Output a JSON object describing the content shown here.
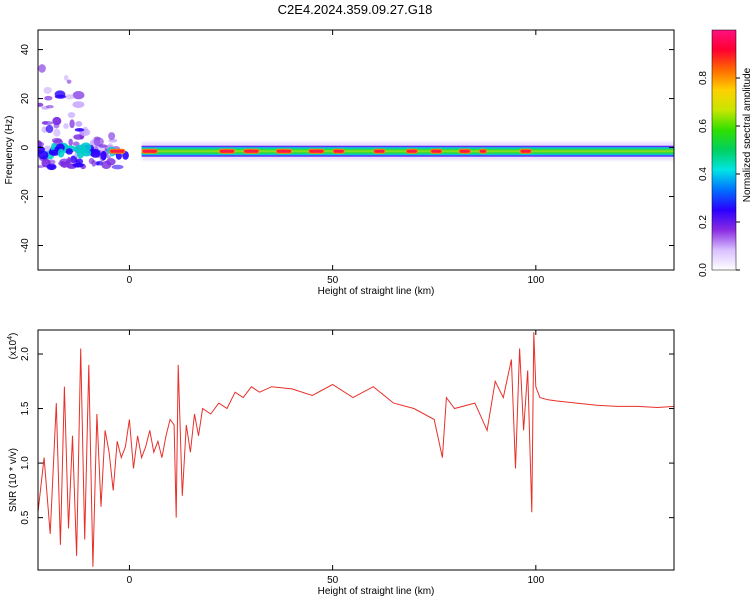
{
  "title": "C2E4.2024.359.09.27.G18",
  "colors": {
    "snr_line": "#e8302a",
    "frame": "#000000"
  },
  "chart_data": [
    {
      "type": "heatmap",
      "title": "C2E4.2024.359.09.27.G18",
      "xlabel": "Height of straight line (km)",
      "ylabel": "Frequency (Hz)",
      "xlim": [
        -22.5,
        134
      ],
      "ylim": [
        -50,
        48
      ],
      "x_ticks": [
        0,
        50,
        100
      ],
      "y_ticks": [
        40,
        20,
        0,
        -20,
        -40
      ],
      "x_tick_labels": [
        "0",
        "50",
        "100"
      ],
      "y_tick_labels": [
        "40",
        "20",
        "0",
        "-20",
        "-40"
      ],
      "colorbar": {
        "label": "Normalized spectral amplitude",
        "range": [
          0,
          1
        ],
        "ticks": [
          0.0,
          0.2,
          0.4,
          0.6,
          0.8
        ],
        "tick_labels": [
          "0.0",
          "0.2",
          "0.4",
          "0.6",
          "0.8"
        ],
        "colors": [
          "#ffffff",
          "#d8c0ff",
          "#8a2be2",
          "#2a00ff",
          "#0070ff",
          "#00e5e5",
          "#00d060",
          "#30e000",
          "#c8e600",
          "#ffd000",
          "#ff6a00",
          "#ff0030",
          "#ff1080"
        ]
      },
      "band": {
        "center_freq": -1.5,
        "peak_segments": [
          [
            -5,
            -1
          ],
          [
            3,
            7
          ],
          [
            22,
            26
          ],
          [
            28,
            32
          ],
          [
            36,
            40
          ],
          [
            44,
            48
          ],
          [
            50,
            53
          ],
          [
            60,
            63
          ],
          [
            68,
            71
          ],
          [
            74,
            77
          ],
          [
            81,
            84
          ],
          [
            86,
            88
          ],
          [
            96,
            99
          ]
        ]
      }
    },
    {
      "type": "line",
      "xlabel": "Height of straight line (km)",
      "ylabel": "SNR (10 * v/v)",
      "y_multiplier": "(x10",
      "y_multiplier_exp": "4",
      "y_multiplier_close": ")",
      "xlim": [
        -22.5,
        134
      ],
      "ylim": [
        0.02,
        2.22
      ],
      "x_ticks": [
        0,
        50,
        100
      ],
      "y_ticks": [
        0.5,
        1.0,
        1.5,
        2.0
      ],
      "x_tick_labels": [
        "0",
        "50",
        "100"
      ],
      "y_tick_labels": [
        "0.5",
        "1.0",
        "1.5",
        "2.0"
      ],
      "series": [
        {
          "x": [
            -22.5,
            -21,
            -19.5,
            -18,
            -17,
            -16,
            -15,
            -14,
            -13,
            -12,
            -11,
            -10,
            -9,
            -8,
            -7,
            -6,
            -5,
            -4,
            -3,
            -2,
            -1,
            0,
            1,
            2,
            3,
            4,
            5,
            6,
            7,
            8,
            9,
            10,
            11,
            11.5,
            12,
            13,
            14,
            15,
            16,
            17,
            18,
            20,
            22,
            24,
            26,
            28,
            30,
            32,
            35,
            40,
            45,
            50,
            55,
            60,
            65,
            70,
            75,
            77,
            78,
            80,
            85,
            88,
            90,
            92,
            94,
            95,
            96,
            97,
            98,
            99,
            99.5,
            100,
            101,
            103,
            105,
            110,
            115,
            120,
            125,
            130,
            134
          ],
          "values": [
            0.55,
            1.05,
            0.35,
            1.55,
            0.25,
            1.7,
            0.4,
            1.25,
            0.15,
            2.05,
            0.3,
            1.9,
            0.05,
            1.45,
            0.6,
            1.3,
            1.1,
            0.75,
            1.2,
            1.05,
            1.15,
            1.4,
            0.95,
            1.25,
            1.05,
            1.15,
            1.3,
            1.1,
            1.2,
            1.05,
            1.25,
            1.4,
            1.35,
            0.5,
            1.9,
            0.7,
            1.35,
            1.1,
            1.45,
            1.25,
            1.5,
            1.45,
            1.55,
            1.5,
            1.65,
            1.6,
            1.7,
            1.65,
            1.7,
            1.68,
            1.62,
            1.72,
            1.6,
            1.7,
            1.55,
            1.5,
            1.4,
            1.05,
            1.6,
            1.5,
            1.55,
            1.3,
            1.75,
            1.6,
            1.95,
            0.95,
            2.05,
            1.3,
            1.85,
            0.55,
            2.2,
            1.7,
            1.6,
            1.58,
            1.57,
            1.55,
            1.53,
            1.52,
            1.52,
            1.51,
            1.52
          ]
        }
      ]
    }
  ]
}
